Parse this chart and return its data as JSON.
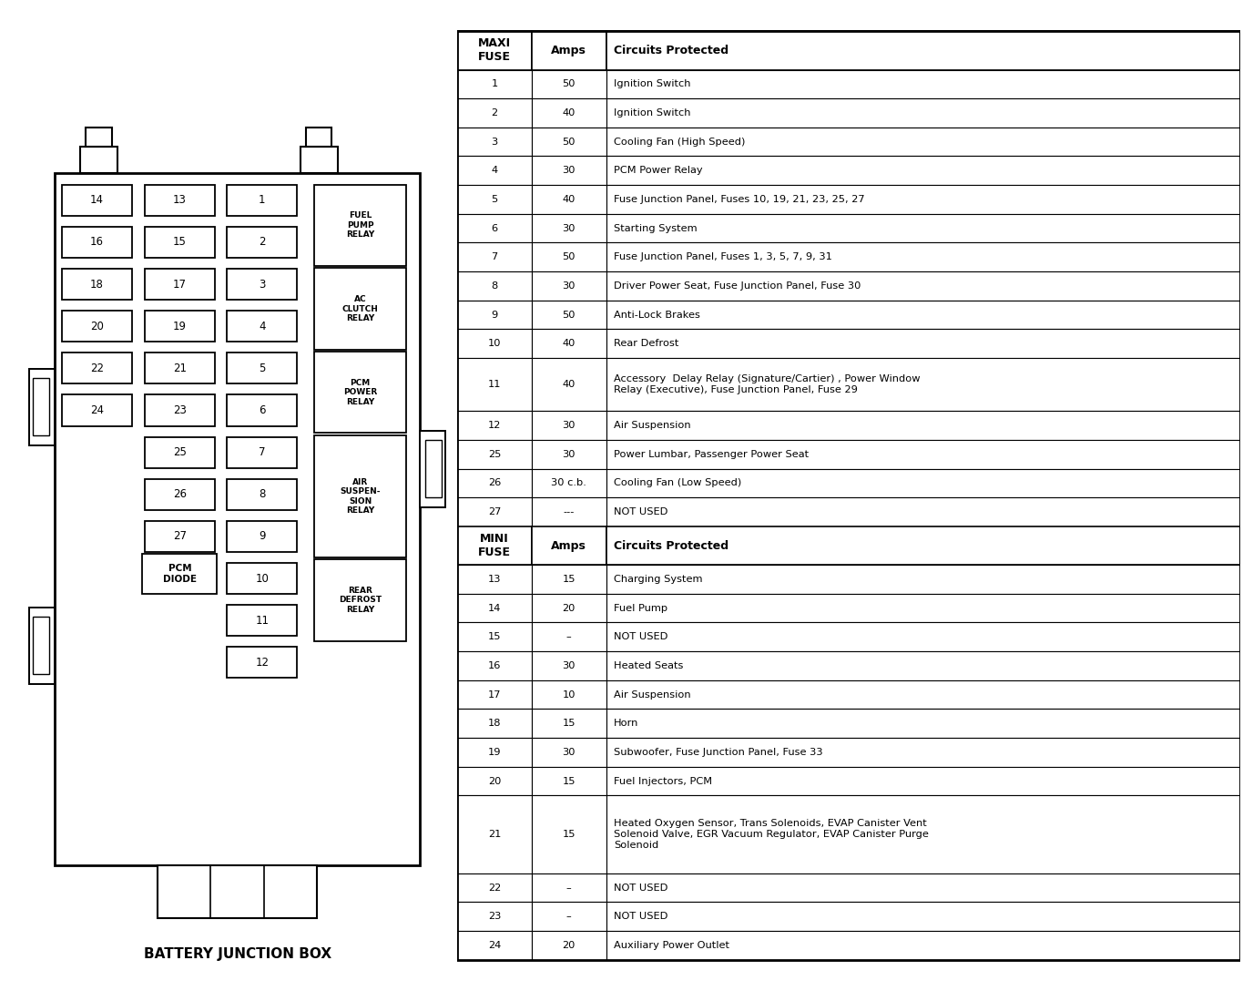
{
  "bg_color": "#ffffff",
  "maxi_header": [
    "MAXI\nFUSE",
    "Amps",
    "Circuits Protected"
  ],
  "mini_header": [
    "MINI\nFUSE",
    "Amps",
    "Circuits Protected"
  ],
  "maxi_rows": [
    [
      "1",
      "50",
      "Ignition Switch"
    ],
    [
      "2",
      "40",
      "Ignition Switch"
    ],
    [
      "3",
      "50",
      "Cooling Fan (High Speed)"
    ],
    [
      "4",
      "30",
      "PCM Power Relay"
    ],
    [
      "5",
      "40",
      "Fuse Junction Panel, Fuses 10, 19, 21, 23, 25, 27"
    ],
    [
      "6",
      "30",
      "Starting System"
    ],
    [
      "7",
      "50",
      "Fuse Junction Panel, Fuses 1, 3, 5, 7, 9, 31"
    ],
    [
      "8",
      "30",
      "Driver Power Seat, Fuse Junction Panel, Fuse 30"
    ],
    [
      "9",
      "50",
      "Anti-Lock Brakes"
    ],
    [
      "10",
      "40",
      "Rear Defrost"
    ],
    [
      "11",
      "40",
      "Accessory  Delay Relay (Signature/Cartier) , Power Window\nRelay (Executive), Fuse Junction Panel, Fuse 29"
    ],
    [
      "12",
      "30",
      "Air Suspension"
    ],
    [
      "25",
      "30",
      "Power Lumbar, Passenger Power Seat"
    ],
    [
      "26",
      "30 c.b.",
      "Cooling Fan (Low Speed)"
    ],
    [
      "27",
      "---",
      "NOT USED"
    ]
  ],
  "mini_rows": [
    [
      "13",
      "15",
      "Charging System"
    ],
    [
      "14",
      "20",
      "Fuel Pump"
    ],
    [
      "15",
      "–",
      "NOT USED"
    ],
    [
      "16",
      "30",
      "Heated Seats"
    ],
    [
      "17",
      "10",
      "Air Suspension"
    ],
    [
      "18",
      "15",
      "Horn"
    ],
    [
      "19",
      "30",
      "Subwoofer, Fuse Junction Panel, Fuse 33"
    ],
    [
      "20",
      "15",
      "Fuel Injectors, PCM"
    ],
    [
      "21",
      "15",
      "Heated Oxygen Sensor, Trans Solenoids, EVAP Canister Vent\nSolenoid Valve, EGR Vacuum Regulator, EVAP Canister Purge\nSolenoid"
    ],
    [
      "22",
      "–",
      "NOT USED"
    ],
    [
      "23",
      "–",
      "NOT USED"
    ],
    [
      "24",
      "20",
      "Auxiliary Power Outlet"
    ]
  ],
  "diagram_title": "BATTERY JUNCTION BOX",
  "left_col_labels": [
    "14",
    "16",
    "18",
    "20",
    "22",
    "24"
  ],
  "mid_col_labels": [
    "13",
    "15",
    "17",
    "19",
    "21",
    "23"
  ],
  "right_col_labels": [
    "1",
    "2",
    "3",
    "4",
    "5",
    "6",
    "7",
    "8",
    "9",
    "10",
    "11",
    "12"
  ],
  "bottom_mid_labels": [
    "25",
    "26",
    "27"
  ],
  "relay_labels": [
    "FUEL\nPUMP\nRELAY",
    "AC\nCLUTCH\nRELAY",
    "PCM\nPOWER\nRELAY",
    "AIR\nSUSPEN-\nSION\nRELAY",
    "REAR\nDEFROST\nRELAY"
  ],
  "relay_heights": [
    1.7,
    1.7,
    1.7,
    2.55,
    1.7
  ],
  "pcm_diode_label": "PCM\nDIODE"
}
